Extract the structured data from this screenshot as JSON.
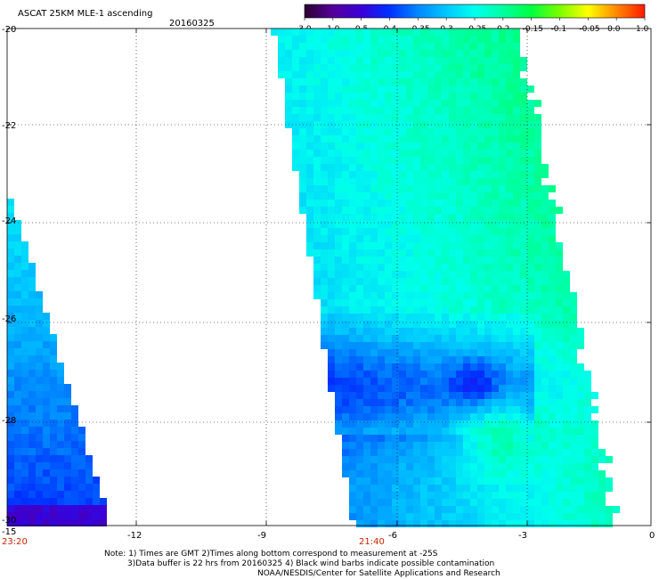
{
  "header": {
    "product": "ASCAT 25KM MLE-1 ascending",
    "date": "20160325"
  },
  "colorbar": {
    "ticks": [
      "-3.0",
      "-1.0",
      "-0.5",
      "-0.4",
      "-0.35",
      "-0.3",
      "-0.25",
      "-0.2",
      "-0.15",
      "-0.1",
      "-0.05",
      "0.0",
      "1.0"
    ],
    "colors": [
      "#2a0030",
      "#55009a",
      "#3a00d8",
      "#0030ff",
      "#0088ff",
      "#00c8ff",
      "#00ffee",
      "#00ffa0",
      "#00ff40",
      "#7cff00",
      "#ffff00",
      "#ff8800",
      "#ff1a00"
    ]
  },
  "map": {
    "lat_labels": [
      "-20",
      "-22",
      "-24",
      "-26",
      "-28",
      "-30"
    ],
    "lon_labels": [
      "-15",
      "-12",
      "-9",
      "-6",
      "-3",
      "0"
    ],
    "time_labels": [
      "23:20",
      "21:40"
    ]
  },
  "footer": {
    "note_line1": "Note: 1) Times are GMT 2)Times along bottom correspond to measurement at -25S",
    "note_line2": "3)Data buffer is 22 hrs from 20160325 4) Black wind barbs indicate possible contamination",
    "credit": "NOAA/NESDIS/Center for Satellite Applications and Research"
  }
}
